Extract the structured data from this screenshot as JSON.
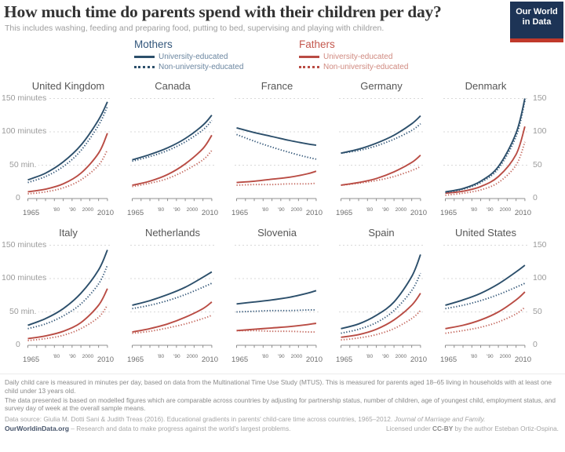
{
  "header": {
    "title": "How much time do parents spend with their children per day?",
    "subtitle": "This includes washing, feeding and preparing food, putting to bed, supervising and playing with children.",
    "logo_line1": "Our World",
    "logo_line2": "in Data"
  },
  "legend": {
    "mothers": {
      "label": "Mothers",
      "items": [
        {
          "label": "University-educated",
          "style": "solid"
        },
        {
          "label": "Non-university-educated",
          "style": "dotted"
        }
      ]
    },
    "fathers": {
      "label": "Fathers",
      "items": [
        {
          "label": "University-educated",
          "style": "solid"
        },
        {
          "label": "Non-university-educated",
          "style": "dotted"
        }
      ]
    }
  },
  "colors": {
    "mothers": "#2c4f6b",
    "mothers_dotted": "#36597a",
    "fathers": "#b94c44",
    "fathers_dotted": "#c4695f",
    "grid": "#d9d9d9",
    "axis": "#8f8f8f",
    "logo_bg": "#1d3456",
    "accent_red": "#c0392b"
  },
  "axis": {
    "x_ticks": [
      "1965",
      "'80",
      "'90",
      "2000",
      "2010"
    ],
    "x_range": [
      1965,
      2010
    ],
    "y_labels_left": [
      "150 minutes",
      "100 minutes",
      "50 min.",
      "0"
    ],
    "y_labels_right": [
      "150",
      "100",
      "50",
      "0"
    ],
    "y_gridline_values": [
      150,
      100,
      50,
      0
    ],
    "ylim": [
      0,
      150
    ]
  },
  "chart_data": {
    "type": "line",
    "unit": "minutes per day",
    "x": [
      1965,
      1975,
      1985,
      1995,
      2005,
      2010
    ],
    "series_styles": [
      {
        "key": "fathers_non_university",
        "color": "fathers_dotted",
        "dash": "dotted"
      },
      {
        "key": "fathers_university",
        "color": "fathers",
        "dash": "solid"
      },
      {
        "key": "mothers_non_university",
        "color": "mothers_dotted",
        "dash": "dotted"
      },
      {
        "key": "mothers_university",
        "color": "mothers",
        "dash": "solid"
      }
    ],
    "panels": [
      {
        "country": "United Kingdom",
        "series": {
          "mothers_university": [
            28,
            38,
            55,
            80,
            118,
            145
          ],
          "mothers_non_university": [
            24,
            33,
            48,
            72,
            110,
            138
          ],
          "fathers_university": [
            10,
            14,
            22,
            38,
            68,
            98
          ],
          "fathers_non_university": [
            7,
            10,
            16,
            28,
            50,
            73
          ]
        }
      },
      {
        "country": "Canada",
        "series": {
          "mothers_university": [
            58,
            66,
            76,
            90,
            110,
            125
          ],
          "mothers_non_university": [
            56,
            63,
            72,
            85,
            103,
            117
          ],
          "fathers_university": [
            20,
            26,
            36,
            52,
            75,
            95
          ],
          "fathers_non_university": [
            18,
            23,
            30,
            42,
            58,
            72
          ]
        }
      },
      {
        "country": "France",
        "series": {
          "mothers_university": [
            106,
            99,
            93,
            87,
            82,
            80
          ],
          "mothers_non_university": [
            96,
            86,
            77,
            69,
            62,
            59
          ],
          "fathers_university": [
            24,
            26,
            29,
            32,
            37,
            41
          ],
          "fathers_non_university": [
            20,
            21,
            21,
            22,
            22,
            23
          ]
        }
      },
      {
        "country": "Germany",
        "series": {
          "mothers_university": [
            68,
            74,
            83,
            95,
            112,
            124
          ],
          "mothers_non_university": [
            68,
            72,
            79,
            89,
            102,
            112
          ],
          "fathers_university": [
            20,
            24,
            30,
            40,
            54,
            65
          ],
          "fathers_non_university": [
            20,
            23,
            27,
            33,
            42,
            48
          ]
        }
      },
      {
        "country": "Denmark",
        "series": {
          "mothers_university": [
            10,
            15,
            26,
            48,
            98,
            150
          ],
          "mothers_non_university": [
            9,
            14,
            24,
            45,
            93,
            146
          ],
          "fathers_university": [
            8,
            11,
            18,
            33,
            66,
            108
          ],
          "fathers_non_university": [
            5,
            8,
            13,
            24,
            50,
            85
          ]
        }
      },
      {
        "country": "Italy",
        "series": {
          "mothers_university": [
            30,
            40,
            55,
            78,
            113,
            143
          ],
          "mothers_non_university": [
            25,
            32,
            44,
            62,
            92,
            120
          ],
          "fathers_university": [
            10,
            14,
            21,
            34,
            60,
            85
          ],
          "fathers_non_university": [
            7,
            10,
            15,
            25,
            42,
            60
          ]
        }
      },
      {
        "country": "Netherlands",
        "series": {
          "mothers_university": [
            60,
            67,
            76,
            87,
            102,
            110
          ],
          "mothers_non_university": [
            55,
            60,
            67,
            76,
            87,
            93
          ],
          "fathers_university": [
            20,
            25,
            32,
            42,
            55,
            65
          ],
          "fathers_non_university": [
            18,
            21,
            26,
            32,
            40,
            45
          ]
        }
      },
      {
        "country": "Slovenia",
        "series": {
          "mothers_university": [
            62,
            65,
            68,
            72,
            78,
            82
          ],
          "mothers_non_university": [
            50,
            51,
            52,
            52,
            53,
            53
          ],
          "fathers_university": [
            22,
            24,
            26,
            28,
            31,
            33
          ],
          "fathers_non_university": [
            22,
            22,
            21,
            21,
            20,
            20
          ]
        }
      },
      {
        "country": "Spain",
        "series": {
          "mothers_university": [
            25,
            32,
            45,
            65,
            103,
            136
          ],
          "mothers_non_university": [
            18,
            24,
            34,
            52,
            82,
            108
          ],
          "fathers_university": [
            12,
            16,
            24,
            38,
            60,
            78
          ],
          "fathers_non_university": [
            8,
            11,
            16,
            25,
            40,
            52
          ]
        }
      },
      {
        "country": "United States",
        "series": {
          "mothers_university": [
            60,
            68,
            78,
            92,
            110,
            120
          ],
          "mothers_non_university": [
            55,
            60,
            67,
            76,
            87,
            93
          ],
          "fathers_university": [
            25,
            30,
            38,
            50,
            68,
            80
          ],
          "fathers_non_university": [
            18,
            22,
            27,
            35,
            47,
            57
          ]
        }
      }
    ]
  },
  "footer": {
    "note1": "Daily child care is measured in minutes per day, based on data from the Multinational Time Use Study (MTUS). This is measured for parents aged 18–65 living in households with at least one child under 13 years old.",
    "note2": "The data presented is based on modelled figures which are comparable across countries by adjusting for partnership status, number of children, age of youngest child, employment status, and survey day of week at the overall sample means.",
    "source_prefix": "Data source: Giulia M. Dotti Sani & Judith Treas (2016). Educational gradients in parents' child-care time across countries, 1965–2012. ",
    "source_journal": "Journal of Marriage and Family.",
    "brand": "OurWorldinData.org",
    "brand_tagline": " – Research and data to make progress against the world's largest problems.",
    "license_pre": "Licensed under ",
    "license_ccby": "CC-BY",
    "license_post": " by the author Esteban Ortiz-Ospina."
  }
}
